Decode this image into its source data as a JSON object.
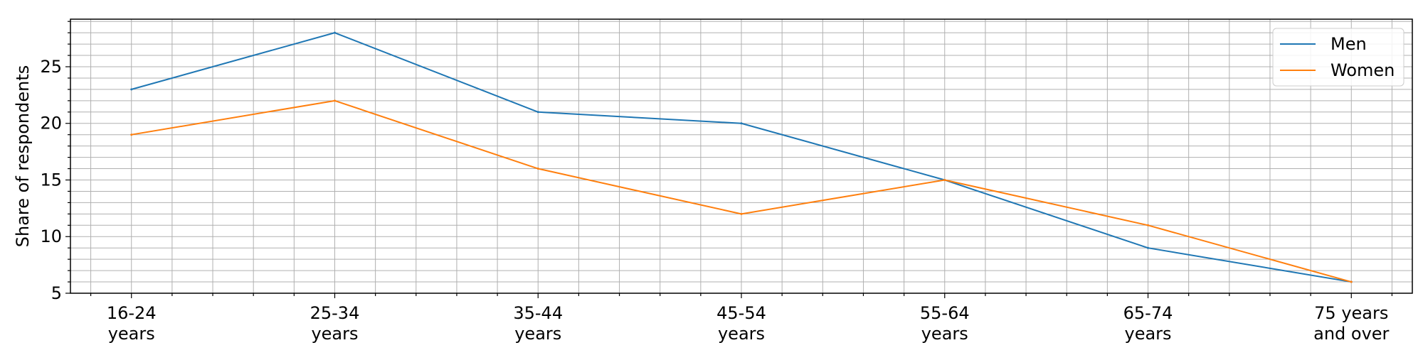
{
  "chart_data": {
    "type": "line",
    "title": "",
    "xlabel": "",
    "ylabel": "Share of respondents",
    "categories": [
      [
        "16-24",
        "years"
      ],
      [
        "25-34",
        "years"
      ],
      [
        "35-44",
        "years"
      ],
      [
        "45-54",
        "years"
      ],
      [
        "55-64",
        "years"
      ],
      [
        "65-74",
        "years"
      ],
      [
        "75 years",
        "and over"
      ]
    ],
    "series": [
      {
        "name": "Men",
        "color": "#1f77b4",
        "values": [
          23,
          28,
          21,
          20,
          15,
          9,
          6
        ]
      },
      {
        "name": "Women",
        "color": "#ff7f0e",
        "values": [
          19,
          22,
          16,
          12,
          15,
          11,
          6
        ]
      }
    ],
    "ylim": [
      5,
      29.2
    ],
    "yticks": [
      5,
      10,
      15,
      20,
      25
    ],
    "grid": true,
    "legend": "top-right"
  }
}
